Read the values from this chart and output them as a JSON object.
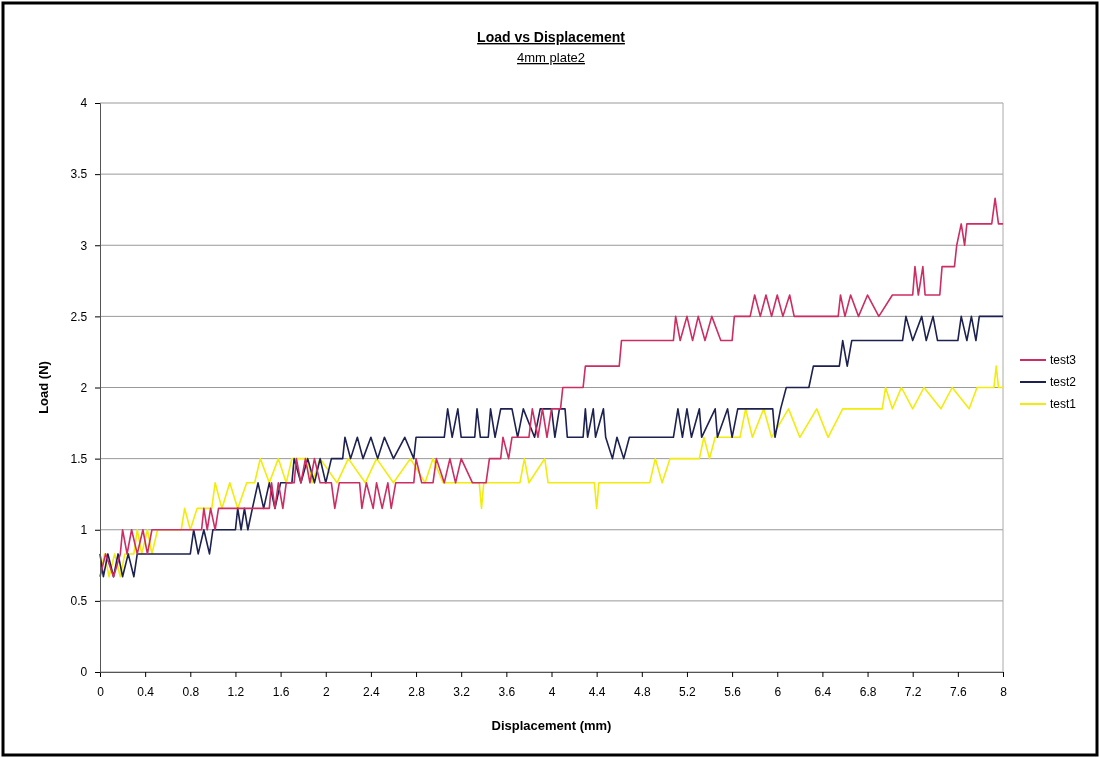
{
  "chart_data": {
    "type": "line",
    "title": "Load vs Displacement",
    "subtitle": "4mm plate2",
    "xlabel": "Displacement (mm)",
    "ylabel": "Load (N)",
    "xlim": [
      0,
      8
    ],
    "xticks": [
      0,
      0.4,
      0.8,
      1.2,
      1.6,
      2,
      2.4,
      2.8,
      3.2,
      3.6,
      4,
      4.4,
      4.8,
      5.2,
      5.6,
      6,
      6.4,
      6.8,
      7.2,
      7.6,
      8
    ],
    "ylim": [
      0,
      4
    ],
    "yticks": [
      0,
      0.5,
      1,
      1.5,
      2,
      2.5,
      3,
      3.5,
      4
    ],
    "grid": "y",
    "legend": "right",
    "marker": "none",
    "line_style": "solid",
    "series": [
      {
        "name": "test3",
        "color": "#cc2d63",
        "x": [
          0,
          0.05,
          0.12,
          0.18,
          0.2,
          0.24,
          0.28,
          0.33,
          0.38,
          0.42,
          0.46,
          0.9,
          0.92,
          0.95,
          0.98,
          1.02,
          1.05,
          1.5,
          1.52,
          1.55,
          1.58,
          1.62,
          1.65,
          1.72,
          1.74,
          1.78,
          1.82,
          1.86,
          1.9,
          1.95,
          2.05,
          2.08,
          2.12,
          2.3,
          2.32,
          2.36,
          2.42,
          2.45,
          2.5,
          2.55,
          2.58,
          2.62,
          2.78,
          2.8,
          2.85,
          2.95,
          2.98,
          3.05,
          3.1,
          3.15,
          3.2,
          3.3,
          3.42,
          3.45,
          3.55,
          3.57,
          3.62,
          3.65,
          3.8,
          3.83,
          3.88,
          3.92,
          3.96,
          4,
          4.08,
          4.1,
          4.28,
          4.3,
          4.6,
          4.62,
          5.08,
          5.1,
          5.14,
          5.2,
          5.25,
          5.3,
          5.36,
          5.42,
          5.5,
          5.6,
          5.62,
          5.76,
          5.8,
          5.85,
          5.9,
          5.95,
          6,
          6.05,
          6.11,
          6.15,
          6.54,
          6.56,
          6.6,
          6.65,
          6.72,
          6.8,
          6.9,
          7.02,
          7.2,
          7.22,
          7.25,
          7.29,
          7.31,
          7.44,
          7.46,
          7.57,
          7.59,
          7.63,
          7.66,
          7.68,
          7.9,
          7.93,
          7.96,
          8
        ],
        "values": [
          0.67,
          0.83,
          0.67,
          0.83,
          1,
          0.83,
          1,
          0.83,
          1,
          0.83,
          1,
          1,
          1.15,
          1,
          1.15,
          1,
          1.15,
          1.15,
          1.33,
          1.15,
          1.33,
          1.15,
          1.33,
          1.33,
          1.5,
          1.33,
          1.5,
          1.33,
          1.5,
          1.33,
          1.33,
          1.15,
          1.33,
          1.33,
          1.15,
          1.33,
          1.15,
          1.33,
          1.15,
          1.33,
          1.15,
          1.33,
          1.33,
          1.5,
          1.33,
          1.33,
          1.5,
          1.33,
          1.5,
          1.33,
          1.5,
          1.33,
          1.33,
          1.5,
          1.5,
          1.65,
          1.5,
          1.65,
          1.65,
          1.85,
          1.65,
          1.85,
          1.65,
          1.85,
          1.85,
          2,
          2,
          2.15,
          2.15,
          2.33,
          2.33,
          2.5,
          2.33,
          2.5,
          2.33,
          2.5,
          2.33,
          2.5,
          2.33,
          2.33,
          2.5,
          2.5,
          2.65,
          2.5,
          2.65,
          2.5,
          2.65,
          2.5,
          2.65,
          2.5,
          2.5,
          2.65,
          2.5,
          2.65,
          2.5,
          2.65,
          2.5,
          2.65,
          2.65,
          2.85,
          2.65,
          2.85,
          2.65,
          2.65,
          2.85,
          2.85,
          3,
          3.15,
          3,
          3.15,
          3.15,
          3.33,
          3.15,
          3.15
        ]
      },
      {
        "name": "test2",
        "color": "#1c2150",
        "x": [
          0,
          0.03,
          0.07,
          0.12,
          0.16,
          0.2,
          0.25,
          0.3,
          0.33,
          0.8,
          0.83,
          0.87,
          0.92,
          0.97,
          1,
          1.2,
          1.22,
          1.25,
          1.28,
          1.31,
          1.35,
          1.4,
          1.45,
          1.5,
          1.55,
          1.6,
          1.7,
          1.72,
          1.78,
          1.84,
          1.9,
          1.95,
          2,
          2.05,
          2.15,
          2.17,
          2.22,
          2.28,
          2.33,
          2.4,
          2.46,
          2.52,
          2.6,
          2.7,
          2.78,
          2.8,
          3.05,
          3.08,
          3.12,
          3.17,
          3.2,
          3.32,
          3.34,
          3.37,
          3.44,
          3.46,
          3.5,
          3.55,
          3.65,
          3.7,
          3.75,
          3.85,
          3.9,
          4,
          4.03,
          4.07,
          4.12,
          4.14,
          4.28,
          4.3,
          4.32,
          4.37,
          4.39,
          4.46,
          4.48,
          4.54,
          4.58,
          4.64,
          4.69,
          5.08,
          5.12,
          5.16,
          5.2,
          5.24,
          5.31,
          5.33,
          5.45,
          5.47,
          5.56,
          5.6,
          5.65,
          5.71,
          5.96,
          5.98,
          6.03,
          6.08,
          6.28,
          6.32,
          6.55,
          6.58,
          6.62,
          6.66,
          7.11,
          7.14,
          7.2,
          7.28,
          7.32,
          7.38,
          7.42,
          7.6,
          7.63,
          7.68,
          7.72,
          7.76,
          7.79,
          8
        ],
        "values": [
          0.83,
          0.67,
          0.83,
          0.67,
          0.83,
          0.67,
          0.83,
          0.67,
          0.83,
          0.83,
          1,
          0.83,
          1,
          0.83,
          1,
          1,
          1.15,
          1,
          1.15,
          1,
          1.15,
          1.33,
          1.15,
          1.33,
          1.15,
          1.33,
          1.33,
          1.5,
          1.33,
          1.5,
          1.33,
          1.5,
          1.33,
          1.5,
          1.5,
          1.65,
          1.5,
          1.65,
          1.5,
          1.65,
          1.5,
          1.65,
          1.5,
          1.65,
          1.5,
          1.65,
          1.65,
          1.85,
          1.65,
          1.85,
          1.65,
          1.65,
          1.85,
          1.65,
          1.65,
          1.85,
          1.65,
          1.85,
          1.85,
          1.65,
          1.85,
          1.65,
          1.85,
          1.85,
          1.65,
          1.85,
          1.85,
          1.65,
          1.65,
          1.85,
          1.65,
          1.85,
          1.65,
          1.85,
          1.65,
          1.5,
          1.65,
          1.5,
          1.65,
          1.65,
          1.85,
          1.65,
          1.85,
          1.65,
          1.85,
          1.65,
          1.85,
          1.65,
          1.85,
          1.65,
          1.85,
          1.85,
          1.85,
          1.65,
          1.85,
          2,
          2,
          2.15,
          2.15,
          2.33,
          2.15,
          2.33,
          2.33,
          2.5,
          2.33,
          2.5,
          2.33,
          2.5,
          2.33,
          2.33,
          2.5,
          2.33,
          2.5,
          2.33,
          2.5,
          2.5
        ]
      },
      {
        "name": "test1",
        "color": "#f2ec0c",
        "x": [
          0,
          0.04,
          0.08,
          0.13,
          0.18,
          0.22,
          0.3,
          0.33,
          0.37,
          0.42,
          0.46,
          0.51,
          0.72,
          0.75,
          0.8,
          0.86,
          0.93,
          0.99,
          1.02,
          1.08,
          1.15,
          1.22,
          1.3,
          1.37,
          1.42,
          1.5,
          1.58,
          1.65,
          1.7,
          1.84,
          1.88,
          1.95,
          2.1,
          2.2,
          2.35,
          2.45,
          2.6,
          2.75,
          2.88,
          2.95,
          3.04,
          3.36,
          3.38,
          3.4,
          3.72,
          3.76,
          3.8,
          3.94,
          3.97,
          4.38,
          4.4,
          4.42,
          4.87,
          4.92,
          4.98,
          5.05,
          5.31,
          5.35,
          5.4,
          5.45,
          5.47,
          5.67,
          5.72,
          5.78,
          5.88,
          5.95,
          6.1,
          6.2,
          6.35,
          6.45,
          6.58,
          6.64,
          6.93,
          6.96,
          7.02,
          7.1,
          7.2,
          7.3,
          7.45,
          7.55,
          7.7,
          7.77,
          7.92,
          7.94,
          7.96,
          8
        ],
        "values": [
          0.67,
          0.83,
          0.67,
          0.83,
          0.67,
          0.83,
          0.83,
          1,
          0.83,
          1,
          0.83,
          1,
          1,
          1.15,
          1,
          1.15,
          1.15,
          1.15,
          1.33,
          1.15,
          1.33,
          1.15,
          1.33,
          1.33,
          1.5,
          1.33,
          1.5,
          1.33,
          1.5,
          1.5,
          1.33,
          1.5,
          1.33,
          1.5,
          1.33,
          1.5,
          1.33,
          1.5,
          1.33,
          1.5,
          1.33,
          1.33,
          1.15,
          1.33,
          1.33,
          1.5,
          1.33,
          1.5,
          1.33,
          1.33,
          1.15,
          1.33,
          1.33,
          1.5,
          1.33,
          1.5,
          1.5,
          1.65,
          1.5,
          1.65,
          1.65,
          1.65,
          1.85,
          1.65,
          1.85,
          1.65,
          1.85,
          1.65,
          1.85,
          1.65,
          1.85,
          1.85,
          1.85,
          2,
          1.85,
          2,
          1.85,
          2,
          1.85,
          2,
          1.85,
          2,
          2,
          2.15,
          2,
          2
        ]
      }
    ]
  }
}
